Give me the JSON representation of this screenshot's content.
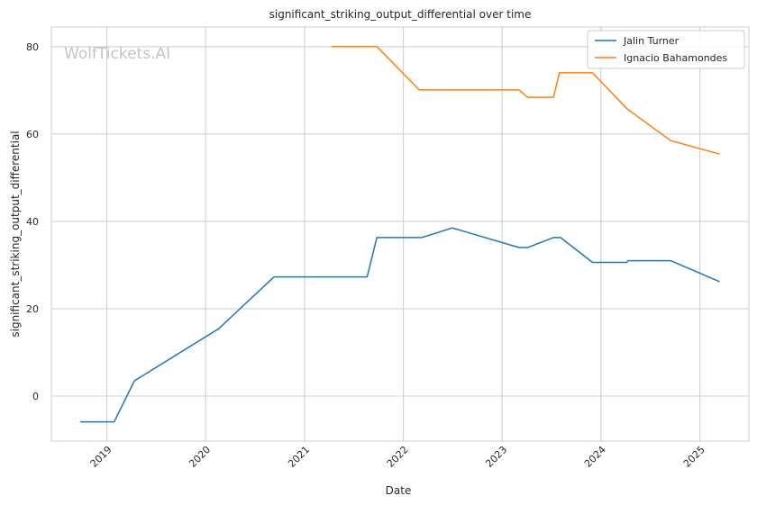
{
  "chart_data": {
    "type": "line",
    "title": "significant_striking_output_differential over time",
    "xlabel": "Date",
    "ylabel": "significant_striking_output_differential",
    "watermark": "WolfTickets.AI",
    "xlim": [
      "2018-06-10",
      "2025-07-01"
    ],
    "ylim": [
      -10.3,
      84.5
    ],
    "x_ticks": [
      {
        "date": "2019-01-01",
        "label": "2019"
      },
      {
        "date": "2020-01-01",
        "label": "2020"
      },
      {
        "date": "2021-01-01",
        "label": "2021"
      },
      {
        "date": "2022-01-01",
        "label": "2022"
      },
      {
        "date": "2023-01-01",
        "label": "2023"
      },
      {
        "date": "2024-01-01",
        "label": "2024"
      },
      {
        "date": "2025-01-01",
        "label": "2025"
      }
    ],
    "y_ticks": [
      0,
      20,
      40,
      60,
      80
    ],
    "grid": true,
    "legend_position": "top-right",
    "series": [
      {
        "name": "Jalin Turner",
        "color": "#1f77b4",
        "points": [
          {
            "x": "2018-09-25",
            "y": -5.9
          },
          {
            "x": "2019-01-28",
            "y": -5.9
          },
          {
            "x": "2019-04-13",
            "y": 3.5
          },
          {
            "x": "2020-02-18",
            "y": 15.4
          },
          {
            "x": "2020-09-10",
            "y": 27.3
          },
          {
            "x": "2021-08-20",
            "y": 27.3
          },
          {
            "x": "2021-09-25",
            "y": 36.3
          },
          {
            "x": "2022-03-10",
            "y": 36.3
          },
          {
            "x": "2022-07-01",
            "y": 38.5
          },
          {
            "x": "2023-03-05",
            "y": 34.0
          },
          {
            "x": "2023-04-05",
            "y": 34.0
          },
          {
            "x": "2023-07-10",
            "y": 36.3
          },
          {
            "x": "2023-08-05",
            "y": 36.3
          },
          {
            "x": "2023-12-01",
            "y": 30.6
          },
          {
            "x": "2024-04-06",
            "y": 30.6
          },
          {
            "x": "2024-04-10",
            "y": 31.0
          },
          {
            "x": "2024-09-15",
            "y": 31.0
          },
          {
            "x": "2025-03-15",
            "y": 26.2
          }
        ]
      },
      {
        "name": "Ignacio Bahamondes",
        "color": "#ff7f0e",
        "points": [
          {
            "x": "2021-04-10",
            "y": 80.0
          },
          {
            "x": "2021-09-25",
            "y": 80.0
          },
          {
            "x": "2022-03-01",
            "y": 70.1
          },
          {
            "x": "2023-03-05",
            "y": 70.1
          },
          {
            "x": "2023-04-05",
            "y": 68.4
          },
          {
            "x": "2023-07-10",
            "y": 68.4
          },
          {
            "x": "2023-08-01",
            "y": 74.0
          },
          {
            "x": "2023-12-01",
            "y": 74.0
          },
          {
            "x": "2024-04-06",
            "y": 65.8
          },
          {
            "x": "2024-09-15",
            "y": 58.5
          },
          {
            "x": "2025-03-15",
            "y": 55.4
          }
        ]
      }
    ]
  }
}
